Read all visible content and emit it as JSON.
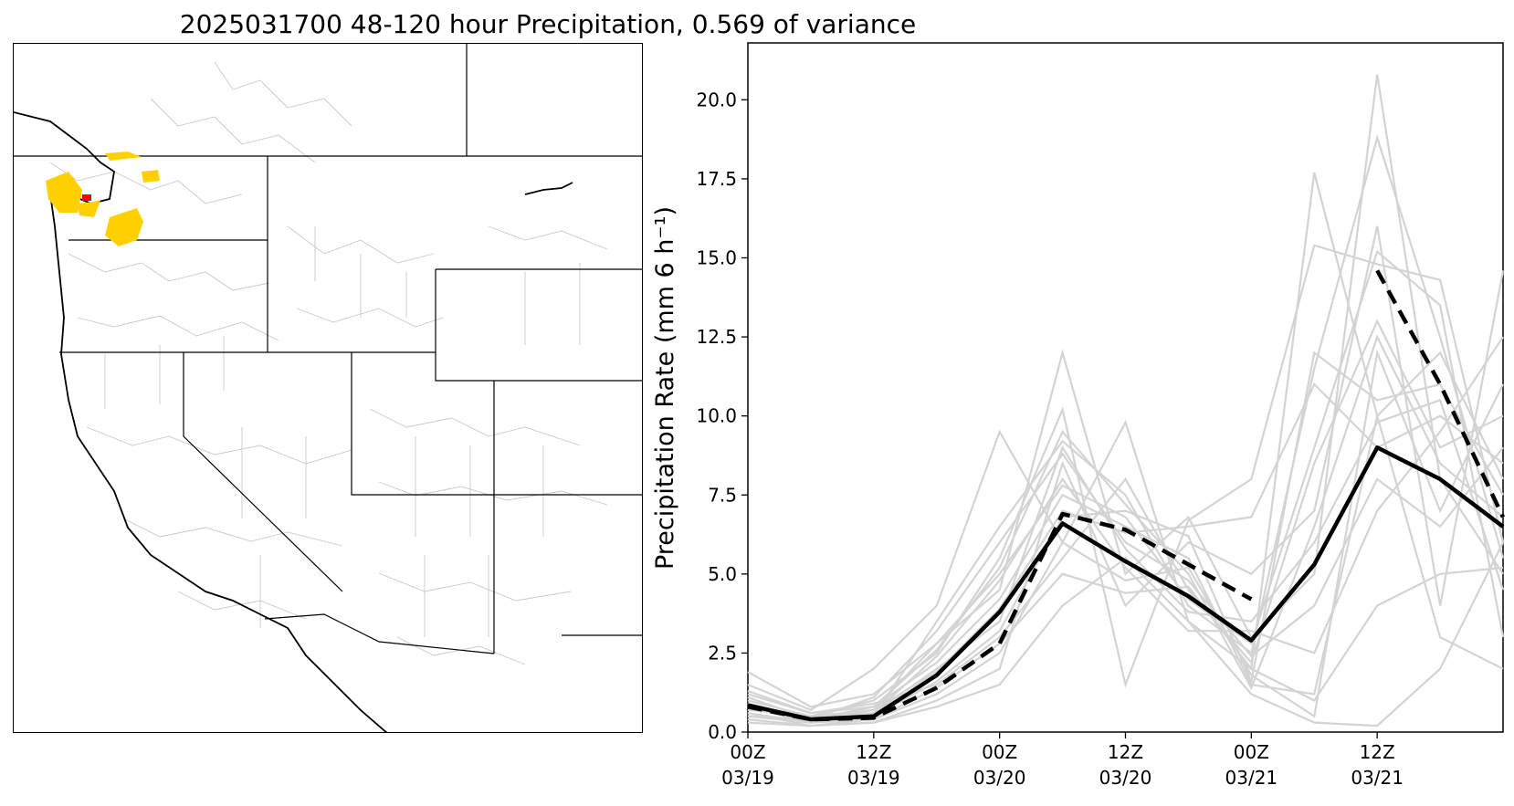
{
  "title": "2025031700 48-120 hour Precipitation, 0.569 of variance",
  "map": {
    "highlight_colors": {
      "yellow": "#ffd000",
      "red": "#ff0000"
    }
  },
  "chart_data": {
    "type": "line",
    "title": "2025031700 48-120 hour Precipitation, 0.569 of variance",
    "ylabel": "Precipitation Rate (mm 6 h⁻¹)",
    "ylim": [
      0,
      21.8
    ],
    "x": [
      "03/19 00Z",
      "03/19 06Z",
      "03/19 12Z",
      "03/19 18Z",
      "03/20 00Z",
      "03/20 06Z",
      "03/20 12Z",
      "03/20 18Z",
      "03/21 00Z",
      "03/21 06Z",
      "03/21 12Z",
      "03/21 18Z",
      "03/22 00Z"
    ],
    "x_ticks": [
      {
        "line1": "00Z",
        "line2": "03/19",
        "index": 0
      },
      {
        "line1": "12Z",
        "line2": "03/19",
        "index": 2
      },
      {
        "line1": "00Z",
        "line2": "03/20",
        "index": 4
      },
      {
        "line1": "12Z",
        "line2": "03/20",
        "index": 6
      },
      {
        "line1": "00Z",
        "line2": "03/21",
        "index": 8
      },
      {
        "line1": "12Z",
        "line2": "03/21",
        "index": 10
      }
    ],
    "y_ticks": [
      "0.0",
      "2.5",
      "5.0",
      "7.5",
      "10.0",
      "12.5",
      "15.0",
      "17.5",
      "20.0"
    ],
    "y_tick_values": [
      0,
      2.5,
      5,
      7.5,
      10,
      12.5,
      15,
      17.5,
      20
    ],
    "grid": false,
    "series": [
      {
        "role": "mean",
        "color": "#000000",
        "style": "solid",
        "values": [
          0.85,
          0.4,
          0.5,
          1.8,
          3.8,
          6.6,
          5.4,
          4.3,
          2.9,
          5.3,
          9.0,
          8.0,
          6.5
        ]
      },
      {
        "role": "observed",
        "color": "#000000",
        "style": "dashed",
        "values": [
          0.8,
          0.4,
          0.45,
          1.4,
          2.8,
          6.9,
          6.4,
          5.3,
          4.2,
          null,
          14.6,
          11.0,
          6.8
        ]
      }
    ],
    "members_color": "#d3d3d3",
    "members": [
      [
        1.9,
        0.8,
        1.2,
        2.8,
        4.5,
        12.0,
        5.0,
        6.8,
        3.0,
        5.0,
        20.8,
        8.0,
        5.0
      ],
      [
        1.5,
        0.7,
        2.0,
        4.0,
        9.5,
        6.0,
        9.8,
        3.5,
        2.0,
        17.7,
        10.0,
        3.0,
        2.0
      ],
      [
        1.0,
        0.5,
        1.0,
        2.5,
        5.5,
        10.2,
        1.5,
        6.7,
        8.0,
        15.4,
        14.8,
        14.3,
        6.0
      ],
      [
        0.8,
        0.3,
        0.5,
        3.5,
        6.5,
        9.2,
        7.5,
        4.0,
        2.5,
        11.5,
        18.8,
        12.5,
        5.5
      ],
      [
        0.6,
        0.2,
        0.3,
        1.0,
        2.0,
        8.5,
        4.0,
        6.0,
        5.0,
        7.0,
        16.0,
        4.0,
        14.6
      ],
      [
        0.5,
        0.4,
        0.8,
        2.2,
        4.2,
        7.5,
        6.5,
        5.5,
        1.5,
        1.2,
        10.0,
        12.0,
        8.0
      ],
      [
        1.2,
        0.6,
        0.9,
        1.5,
        3.0,
        5.5,
        8.0,
        4.5,
        2.2,
        8.5,
        13.0,
        9.0,
        10.0
      ],
      [
        0.9,
        0.3,
        0.6,
        2.0,
        3.5,
        9.0,
        5.8,
        3.8,
        3.5,
        6.0,
        9.8,
        10.5,
        4.5
      ],
      [
        0.4,
        0.2,
        0.4,
        1.2,
        2.5,
        6.0,
        4.8,
        5.2,
        1.8,
        0.5,
        12.0,
        7.0,
        11.0
      ],
      [
        0.7,
        0.5,
        0.7,
        2.8,
        5.0,
        7.8,
        6.8,
        4.2,
        2.8,
        9.0,
        15.2,
        13.5,
        3.0
      ],
      [
        0.3,
        0.2,
        0.3,
        0.8,
        1.5,
        4.0,
        5.5,
        3.5,
        1.2,
        0.3,
        0.2,
        2.0,
        6.0
      ],
      [
        1.1,
        0.4,
        1.1,
        3.2,
        6.0,
        8.8,
        6.0,
        4.8,
        2.4,
        4.0,
        8.0,
        6.5,
        9.0
      ],
      [
        0.6,
        0.3,
        0.5,
        1.6,
        3.2,
        6.8,
        7.0,
        6.2,
        1.6,
        12.0,
        10.5,
        11.0,
        7.5
      ],
      [
        0.8,
        0.5,
        0.6,
        2.4,
        4.8,
        8.0,
        5.2,
        3.2,
        3.2,
        2.5,
        7.0,
        9.5,
        12.5
      ],
      [
        0.5,
        0.3,
        0.4,
        1.4,
        2.8,
        5.0,
        4.4,
        4.6,
        2.0,
        1.0,
        4.0,
        5.0,
        5.2
      ],
      [
        1.3,
        0.6,
        0.8,
        2.6,
        5.2,
        9.5,
        7.2,
        5.0,
        1.4,
        6.5,
        12.5,
        8.5,
        6.8
      ],
      [
        0.9,
        0.4,
        0.7,
        1.9,
        3.9,
        7.0,
        6.3,
        6.5,
        6.8,
        11.0,
        9.0,
        10.0,
        8.5
      ]
    ]
  }
}
